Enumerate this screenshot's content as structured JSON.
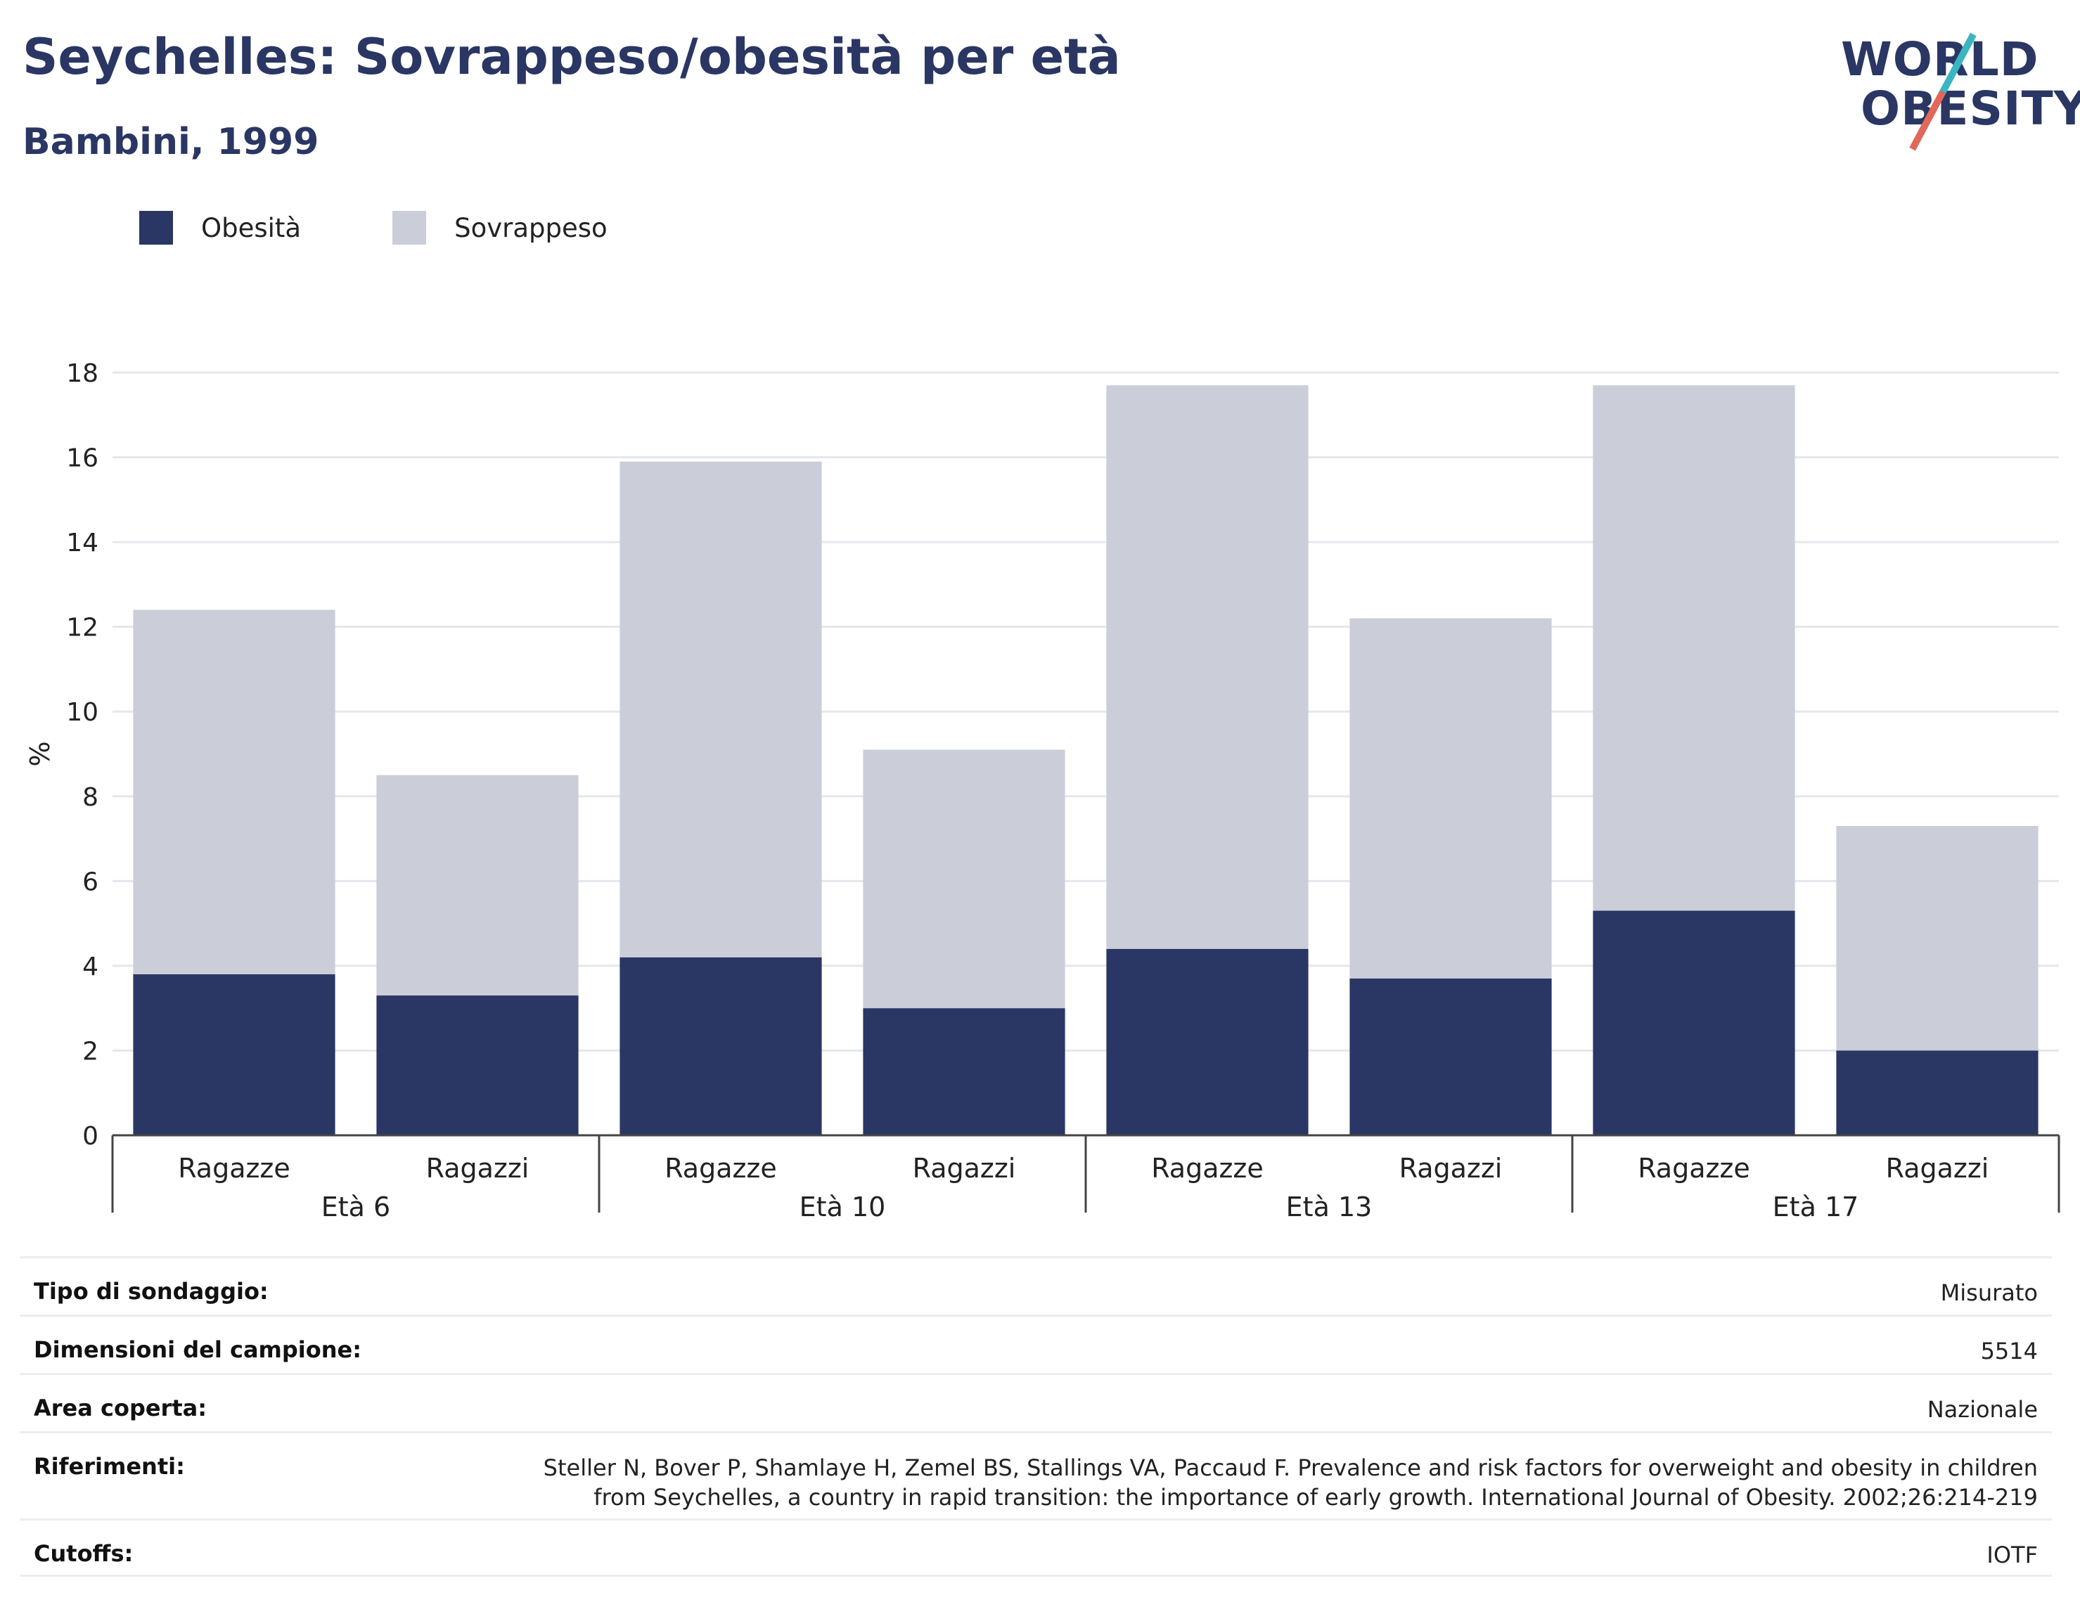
{
  "header": {
    "title": "Seychelles: Sovrappeso/obesità per età",
    "subtitle": "Bambini, 1999"
  },
  "logo": {
    "line1": "WORLD",
    "line2": "OBESITY"
  },
  "colors": {
    "obesity": "#2a3663",
    "overweight": "#cbcdd8",
    "title": "#2a3663"
  },
  "legend": [
    {
      "label": "Obesità",
      "color": "#2a3663"
    },
    {
      "label": "Sovrappeso",
      "color": "#cbcdd8"
    }
  ],
  "chart_data": {
    "type": "bar",
    "stacked": true,
    "ylabel": "%",
    "ylim": [
      0,
      18
    ],
    "yticks": [
      0,
      2,
      4,
      6,
      8,
      10,
      12,
      14,
      16,
      18
    ],
    "grid": true,
    "legend_position": "top-left",
    "groups": [
      "Età 6",
      "Età 10",
      "Età 13",
      "Età 17"
    ],
    "categories": [
      "Ragazze",
      "Ragazzi",
      "Ragazze",
      "Ragazzi",
      "Ragazze",
      "Ragazzi",
      "Ragazze",
      "Ragazzi"
    ],
    "series": [
      {
        "name": "Obesità",
        "values": [
          3.8,
          3.3,
          4.2,
          3.0,
          4.4,
          3.7,
          5.3,
          2.0
        ]
      },
      {
        "name": "Sovrappeso",
        "values": [
          8.6,
          5.2,
          11.7,
          6.1,
          13.3,
          8.5,
          12.4,
          5.3
        ]
      }
    ]
  },
  "info": [
    {
      "key": "Tipo di sondaggio:",
      "value": "Misurato"
    },
    {
      "key": "Dimensioni del campione:",
      "value": "5514"
    },
    {
      "key": "Area coperta:",
      "value": "Nazionale"
    },
    {
      "key": "Riferimenti:",
      "value": "Steller N, Bover P, Shamlaye H, Zemel BS, Stallings VA, Paccaud F. Prevalence and risk factors for overweight and obesity in children from Seychelles, a country in rapid transition: the importance of early growth. International Journal of Obesity. 2002;26:214-219"
    },
    {
      "key": "Cutoffs:",
      "value": "IOTF"
    }
  ]
}
